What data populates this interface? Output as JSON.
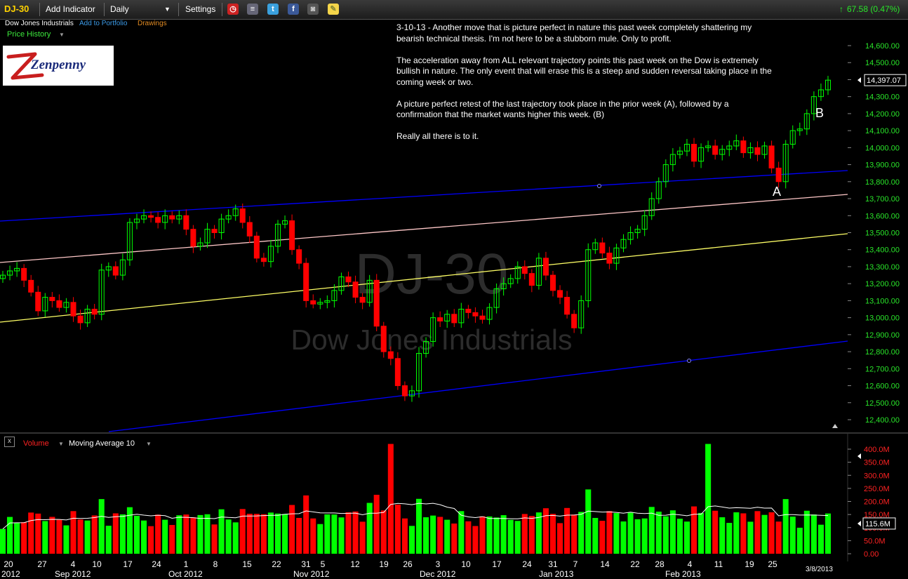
{
  "toolbar": {
    "symbol": "DJ-30",
    "add_indicator": "Add Indicator",
    "interval": "Daily",
    "settings": "Settings",
    "change": "67.58 (0.47%)",
    "icons": [
      "alarm-clock-icon",
      "database-icon",
      "twitter-icon",
      "facebook-icon",
      "camera-icon",
      "note-icon"
    ]
  },
  "subbar": {
    "name": "Dow Jones Industrials",
    "add_to_portfolio": "Add to Portfolio",
    "drawings": "Drawings"
  },
  "price_history_label": "Price History",
  "logo_text": "Zenpenny",
  "annotation": [
    "3-10-13 - Another move that is picture perfect in nature this past week completely shattering my bearish technical thesis. I'm not here to be a stubborn mule. Only to profit.",
    "The acceleration away from ALL relevant trajectory points this past week on the Dow is extremely bullish in nature. The only event that will erase this is a steep and sudden reversal taking place in the coming week or two.",
    "A picture perfect retest of the last trajectory took place in the prior week (A), followed by a confirmation that the market wants higher this week. (B)",
    "Really all there is to it."
  ],
  "marker_a": "A",
  "marker_b": "B",
  "watermark": {
    "symbol": "DJ-30",
    "name": "Dow Jones Industrials"
  },
  "volume_panel": {
    "close_button": "x",
    "label": "Volume",
    "ma_label": "Moving Average 10",
    "last_value": "115.6M"
  },
  "chart_data": [
    {
      "type": "candlestick",
      "title": "DJ-30",
      "last_price_label": "14,397.07",
      "ylim": [
        12350,
        14680
      ],
      "y_ticks": [
        "12,400.00",
        "12,500.00",
        "12,600.00",
        "12,700.00",
        "12,800.00",
        "12,900.00",
        "13,000.00",
        "13,100.00",
        "13,200.00",
        "13,300.00",
        "13,400.00",
        "13,500.00",
        "13,600.00",
        "13,700.00",
        "13,800.00",
        "13,900.00",
        "14,000.00",
        "14,100.00",
        "14,200.00",
        "14,300.00",
        "14,400.00",
        "14,500.00",
        "14,600.00"
      ],
      "x_ticks": [
        "20",
        "27",
        "4",
        "10",
        "17",
        "24",
        "1",
        "8",
        "15",
        "22",
        "31",
        "5",
        "12",
        "19",
        "26",
        "3",
        "10",
        "17",
        "24",
        "31",
        "7",
        "14",
        "22",
        "28",
        "4",
        "11",
        "19",
        "25"
      ],
      "x_months": [
        "2012",
        "Sep 2012",
        "Oct 2012",
        "Nov 2012",
        "Dec 2012",
        "Jan 2013",
        "Feb 2013"
      ],
      "last_date": "3/8/2013",
      "colors": {
        "up": "#00ff00",
        "down": "#ff0000",
        "channel": "#0000ff",
        "pink": "#ffcccc",
        "yellow": "#ffff66"
      },
      "closes": [
        13250,
        13275,
        13290,
        13220,
        13150,
        13040,
        13120,
        13100,
        13060,
        13090,
        13010,
        12970,
        13050,
        13020,
        13280,
        13300,
        13250,
        13340,
        13560,
        13580,
        13600,
        13590,
        13560,
        13600,
        13580,
        13600,
        13520,
        13420,
        13440,
        13520,
        13500,
        13580,
        13600,
        13640,
        13560,
        13480,
        13350,
        13330,
        13420,
        13550,
        13570,
        13400,
        13320,
        13100,
        13080,
        13090,
        13100,
        13160,
        13240,
        13210,
        13120,
        13090,
        13220,
        12950,
        12800,
        12760,
        12600,
        12540,
        12570,
        12790,
        12860,
        13000,
        12980,
        13020,
        12970,
        13050,
        13030,
        13010,
        12990,
        13060,
        13170,
        13200,
        13230,
        13300,
        13260,
        13190,
        13350,
        13250,
        13160,
        13120,
        13020,
        12940,
        13100,
        13400,
        13440,
        13380,
        13320,
        13410,
        13460,
        13500,
        13520,
        13600,
        13700,
        13800,
        13900,
        13960,
        13980,
        14020,
        13920,
        14000,
        14010,
        13960,
        13990,
        14010,
        14040,
        13970,
        14000,
        13960,
        14010,
        13880,
        13800,
        14020,
        14100,
        14110,
        14200,
        14300,
        14340,
        14397
      ],
      "volume_ylim": [
        0,
        440
      ],
      "volume_ticks": [
        "0.00",
        "50.0M",
        "100.0M",
        "150.0M",
        "200.0M",
        "250.0M",
        "300.0M",
        "350.0M",
        "400.0M"
      ]
    }
  ]
}
